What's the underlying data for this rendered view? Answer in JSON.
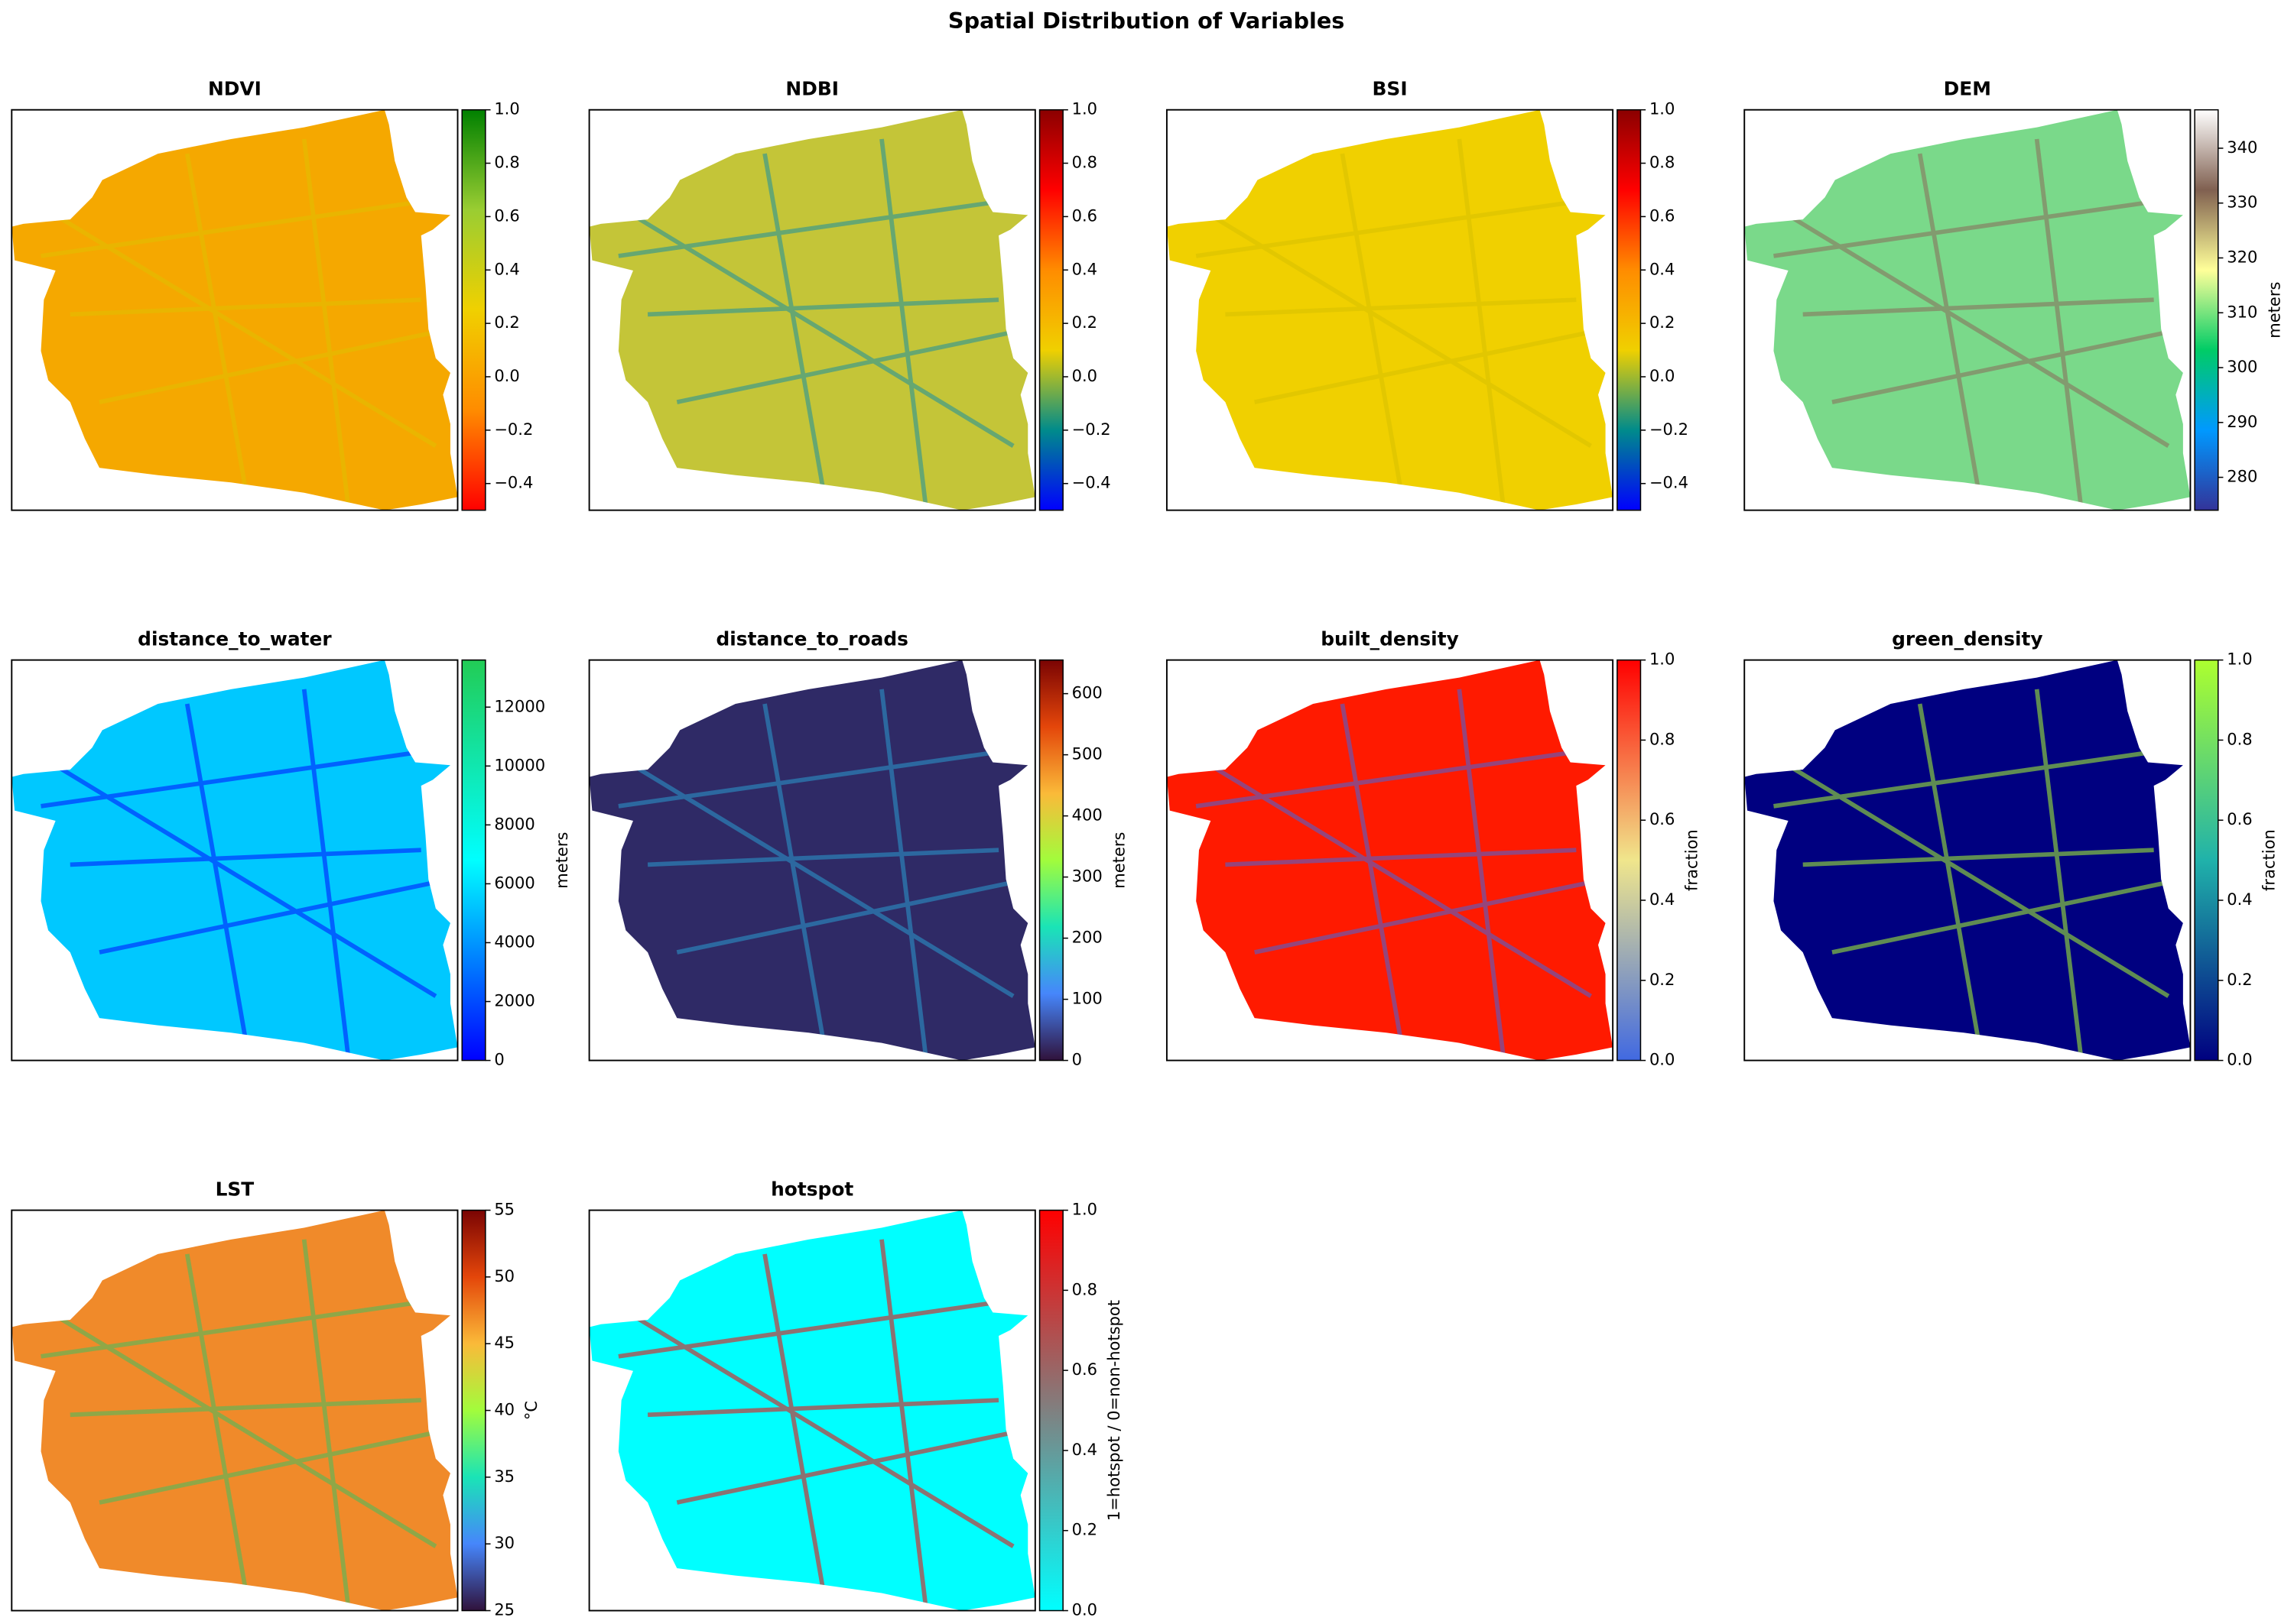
{
  "title": "Spatial Distribution of Variables",
  "chart_data": [
    {
      "type": "raster_map",
      "title": "NDVI",
      "colors": [
        "#ff0000",
        "#ff8c00",
        "#f0d000",
        "#9acd32",
        "#008000"
      ],
      "ylim": [
        -0.5,
        1.0
      ],
      "yticks": [
        {
          "value": -0.4,
          "label": "−0.4"
        },
        {
          "value": -0.2,
          "label": "−0.2"
        },
        {
          "value": 0.0,
          "label": "0.0"
        },
        0.2,
        0.4,
        0.6,
        0.8,
        {
          "value": 1.0,
          "label": "1.0"
        }
      ]
    },
    {
      "type": "raster_map",
      "title": "NDBI",
      "colors": [
        "#0000ff",
        "#008b8b",
        "#f0d000",
        "#ff8c00",
        "#ff0000",
        "#8b0000"
      ],
      "ylim": [
        -0.5,
        1.0
      ],
      "yticks": [
        {
          "value": -0.4,
          "label": "−0.4"
        },
        {
          "value": -0.2,
          "label": "−0.2"
        },
        {
          "value": 0.0,
          "label": "0.0"
        },
        0.2,
        0.4,
        0.6,
        0.8,
        {
          "value": 1.0,
          "label": "1.0"
        }
      ]
    },
    {
      "type": "raster_map",
      "title": "BSI",
      "colors": [
        "#0000ff",
        "#008b8b",
        "#f0d000",
        "#ff8c00",
        "#ff0000",
        "#8b0000"
      ],
      "ylim": [
        -0.5,
        1.0
      ],
      "yticks": [
        {
          "value": -0.4,
          "label": "−0.4"
        },
        {
          "value": -0.2,
          "label": "−0.2"
        },
        {
          "value": 0.0,
          "label": "0.0"
        },
        0.2,
        0.4,
        0.6,
        0.8,
        {
          "value": 1.0,
          "label": "1.0"
        }
      ]
    },
    {
      "type": "raster_map",
      "title": "DEM",
      "colors": [
        "#333399",
        "#0099ff",
        "#00cc66",
        "#ffff99",
        "#806050",
        "#ffffff"
      ],
      "ylim": [
        274,
        347
      ],
      "yticks": [
        280,
        290,
        300,
        310,
        320,
        330,
        340
      ],
      "ylabel": "meters"
    },
    {
      "type": "raster_map",
      "title": "distance_to_water",
      "colors": [
        "#0000ff",
        "#00ffff",
        "#22cc55"
      ],
      "ylim": [
        0,
        13600
      ],
      "yticks": [
        0,
        2000,
        4000,
        6000,
        8000,
        10000,
        12000
      ],
      "ylabel": "meters"
    },
    {
      "type": "raster_map",
      "title": "distance_to_roads",
      "colors": [
        "#30123b",
        "#4686fb",
        "#1ae4b6",
        "#a2fc3c",
        "#fabA39",
        "#e4460a",
        "#7a0403"
      ],
      "ylim": [
        0,
        655
      ],
      "yticks": [
        0,
        100,
        200,
        300,
        400,
        500,
        600
      ],
      "ylabel": "meters"
    },
    {
      "type": "raster_map",
      "title": "built_density",
      "colors": [
        "#4169e1",
        "#f0e68c",
        "#ff0000"
      ],
      "ylim": [
        0,
        1
      ],
      "yticks": [
        {
          "value": 0.0,
          "label": "0.0"
        },
        0.2,
        0.4,
        0.6,
        0.8,
        {
          "value": 1.0,
          "label": "1.0"
        }
      ],
      "ylabel": "fraction"
    },
    {
      "type": "raster_map",
      "title": "green_density",
      "colors": [
        "#000080",
        "#20b2aa",
        "#adff2f"
      ],
      "ylim": [
        0,
        1
      ],
      "yticks": [
        {
          "value": 0.0,
          "label": "0.0"
        },
        0.2,
        0.4,
        0.6,
        0.8,
        {
          "value": 1.0,
          "label": "1.0"
        }
      ],
      "ylabel": "fraction"
    },
    {
      "type": "raster_map",
      "title": "LST",
      "colors": [
        "#30123b",
        "#4686fb",
        "#1ae4b6",
        "#a2fc3c",
        "#fabA39",
        "#e4460a",
        "#7a0403"
      ],
      "ylim": [
        25,
        55
      ],
      "yticks": [
        25,
        30,
        35,
        40,
        45,
        50,
        55
      ],
      "ylabel": "°C"
    },
    {
      "type": "raster_map",
      "title": "hotspot",
      "colors": [
        "#00ffff",
        "#808080",
        "#ff0000"
      ],
      "ylim": [
        0,
        1
      ],
      "yticks": [
        {
          "value": 0.0,
          "label": "0.0"
        },
        0.2,
        0.4,
        0.6,
        0.8,
        {
          "value": 1.0,
          "label": "1.0"
        }
      ],
      "ylabel": "1=hotspot / 0=non-hotspot"
    }
  ]
}
